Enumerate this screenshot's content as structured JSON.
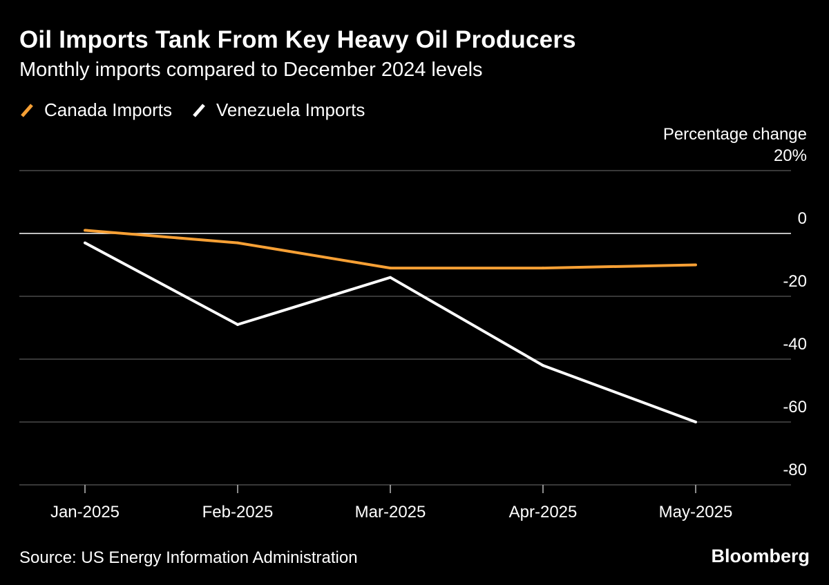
{
  "chart_data": {
    "type": "line",
    "title": "Oil Imports Tank From Key Heavy Oil Producers",
    "subtitle": "Monthly imports compared to December 2024 levels",
    "ylabel": "Percentage change",
    "xlabel": "",
    "categories": [
      "Jan-2025",
      "Feb-2025",
      "Mar-2025",
      "Apr-2025",
      "May-2025"
    ],
    "series": [
      {
        "name": "Canada Imports",
        "color": "#f7a035",
        "values": [
          1,
          -3,
          -11,
          -11,
          -10
        ]
      },
      {
        "name": "Venezuela Imports",
        "color": "#ffffff",
        "values": [
          -3,
          -29,
          -14,
          -42,
          -60
        ]
      }
    ],
    "ylim": [
      -80,
      20
    ],
    "yticks": [
      20,
      0,
      -20,
      -40,
      -60,
      -80
    ],
    "ytick_labels": [
      "20%",
      "0",
      "-20",
      "-40",
      "-60",
      "-80"
    ],
    "grid": true,
    "legend_position": "top-left",
    "source": "Source: US Energy Information Administration",
    "brand": "Bloomberg"
  }
}
